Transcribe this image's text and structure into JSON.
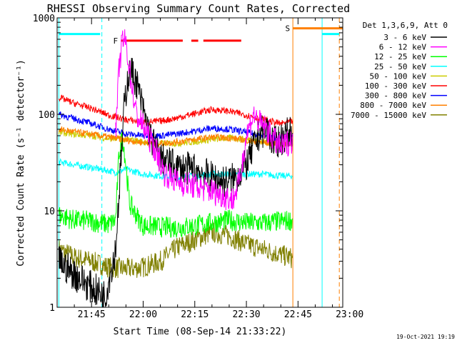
{
  "chart_data": {
    "type": "line",
    "title": "RHESSI Observing Summary Count Rates, Corrected",
    "xlabel": "Start Time (08-Sep-14 21:33:22)",
    "ylabel": "Corrected Count Rate (s⁻¹ detector⁻¹)",
    "xlim_min": [
      35,
      118
    ],
    "ylim": [
      1,
      1000
    ],
    "yscale": "log",
    "x_ticks": [
      {
        "min": 45,
        "label": "21:45"
      },
      {
        "min": 60,
        "label": "22:00"
      },
      {
        "min": 75,
        "label": "22:15"
      },
      {
        "min": 90,
        "label": "22:30"
      },
      {
        "min": 105,
        "label": "22:45"
      },
      {
        "min": 120,
        "label": "23:00"
      }
    ],
    "y_ticks": [
      {
        "v": 1,
        "label": "1"
      },
      {
        "v": 10,
        "label": "10"
      },
      {
        "v": 100,
        "label": "100"
      },
      {
        "v": 1000,
        "label": "1000"
      }
    ],
    "legend_title": "Det 1,3,6,9, Att 0",
    "legend_position": "right",
    "series": [
      {
        "name": "3 - 6 keV",
        "color": "#000000",
        "x": [
          35.5,
          40,
          45,
          49,
          52,
          53.5,
          54.5,
          55.5,
          56.5,
          58,
          60,
          62,
          65,
          70,
          75,
          80,
          84,
          87,
          90,
          92,
          94,
          96,
          98,
          100,
          103.5
        ],
        "y": [
          3,
          2.2,
          1.6,
          1.3,
          4,
          30,
          120,
          240,
          280,
          220,
          110,
          60,
          35,
          28,
          27,
          22,
          20,
          22,
          30,
          45,
          65,
          70,
          50,
          55,
          70
        ]
      },
      {
        "name": "6 - 12 keV",
        "color": "#ff00ff",
        "x": [
          52,
          53,
          54,
          55,
          56,
          57,
          58,
          60,
          62,
          64,
          66,
          70,
          75,
          80,
          84,
          86,
          88,
          90,
          92,
          94,
          96,
          98,
          100,
          103.5
        ],
        "y": [
          60,
          300,
          600,
          550,
          300,
          170,
          100,
          75,
          55,
          40,
          25,
          20,
          18,
          16,
          14,
          13,
          20,
          60,
          100,
          80,
          70,
          55,
          45,
          55
        ]
      },
      {
        "name": "12 - 25 keV",
        "color": "#00ff00",
        "x": [
          35.5,
          40,
          45,
          50,
          52,
          53,
          54,
          55,
          56,
          58,
          60,
          65,
          70,
          75,
          80,
          85,
          90,
          95,
          100,
          103.5
        ],
        "y": [
          9,
          8,
          7.8,
          7.2,
          8,
          40,
          60,
          30,
          12,
          9,
          7,
          6.8,
          6.7,
          7,
          7.5,
          8,
          7.5,
          7.5,
          7.8,
          8
        ]
      },
      {
        "name": "25 - 50 keV",
        "color": "#00ffff",
        "x": [
          35.5,
          40,
          45,
          50,
          52,
          55,
          60,
          65,
          70,
          75,
          80,
          85,
          90,
          95,
          100,
          103.5
        ],
        "y": [
          32,
          30,
          28,
          26,
          25,
          27,
          24,
          23,
          22,
          23,
          24,
          24,
          24,
          24,
          23,
          23
        ]
      },
      {
        "name": "50 - 100 keV",
        "color": "#cccc00",
        "x": [
          35.5,
          40,
          45,
          50,
          55,
          60,
          65,
          70,
          75,
          80,
          85,
          90,
          95,
          100,
          103.5
        ],
        "y": [
          65,
          62,
          60,
          56,
          55,
          52,
          50,
          50,
          52,
          55,
          57,
          55,
          52,
          50,
          50
        ]
      },
      {
        "name": "100 - 300 keV",
        "color": "#ff0000",
        "x": [
          35.5,
          40,
          45,
          50,
          55,
          60,
          65,
          70,
          75,
          80,
          85,
          90,
          95,
          100,
          103.5
        ],
        "y": [
          150,
          130,
          115,
          98,
          88,
          83,
          85,
          92,
          102,
          112,
          108,
          98,
          88,
          80,
          85
        ]
      },
      {
        "name": "300 - 800 keV",
        "color": "#0000ff",
        "x": [
          35.5,
          40,
          45,
          50,
          55,
          60,
          65,
          70,
          75,
          80,
          85,
          90,
          95,
          100,
          103.5
        ],
        "y": [
          100,
          90,
          80,
          70,
          63,
          60,
          60,
          63,
          67,
          72,
          70,
          65,
          60,
          57,
          60
        ]
      },
      {
        "name": "800 - 7000 keV",
        "color": "#ff8000",
        "x": [
          35.5,
          40,
          45,
          50,
          55,
          60,
          65,
          70,
          75,
          80,
          85,
          90,
          95,
          100,
          103.5
        ],
        "y": [
          70,
          66,
          62,
          58,
          54,
          51,
          50,
          52,
          55,
          58,
          57,
          54,
          51,
          49,
          50
        ]
      },
      {
        "name": "7000 - 15000 keV",
        "color": "#808000",
        "x": [
          35.5,
          40,
          45,
          50,
          55,
          60,
          65,
          70,
          75,
          80,
          85,
          90,
          95,
          100,
          103.5
        ],
        "y": [
          4,
          3.3,
          3,
          2.6,
          2.5,
          2.6,
          3,
          4.2,
          5,
          6,
          5.5,
          4.5,
          4,
          3.5,
          3.2
        ]
      }
    ],
    "annotations": [
      {
        "label": "F",
        "color": "#ff0000",
        "kind": "flare-bar",
        "segments": [
          [
            53.5,
            71.5
          ],
          [
            74,
            76
          ],
          [
            77.5,
            88.5
          ]
        ],
        "y": 580
      },
      {
        "label": "S",
        "color": "#ff8000",
        "kind": "saa-bar",
        "segments": [
          [
            103.5,
            118
          ]
        ],
        "y": 780
      }
    ],
    "markers": [
      {
        "kind": "night",
        "color": "#00ffff",
        "x_min": [
          35.5,
          47.5
        ],
        "y": 680
      },
      {
        "kind": "night",
        "color": "#00ffff",
        "x_min": [
          112,
          117
        ],
        "y": 680
      }
    ],
    "vertical_lines": [
      {
        "x_min": 35.5,
        "color": "#00ffff",
        "style": "solid"
      },
      {
        "x_min": 48,
        "color": "#00ffff",
        "style": "dashed"
      },
      {
        "x_min": 103.5,
        "color": "#ff8000",
        "style": "solid"
      },
      {
        "x_min": 112,
        "color": "#00ffff",
        "style": "solid"
      },
      {
        "x_min": 117,
        "color": "#ff8000",
        "style": "dashed"
      }
    ],
    "grid": false
  },
  "footer": {
    "timestamp": "19-Oct-2021 19:19"
  }
}
